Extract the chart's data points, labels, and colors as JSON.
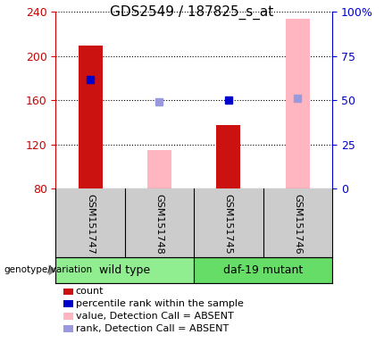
{
  "title": "GDS2549 / 187825_s_at",
  "samples": [
    "GSM151747",
    "GSM151748",
    "GSM151745",
    "GSM151746"
  ],
  "groups": [
    {
      "name": "wild type",
      "color": "#90EE90",
      "samples": [
        0,
        1
      ]
    },
    {
      "name": "daf-19 mutant",
      "color": "#66DD66",
      "samples": [
        2,
        3
      ]
    }
  ],
  "ymin": 80,
  "ymax": 240,
  "yticks_left": [
    80,
    120,
    160,
    200,
    240
  ],
  "yticks_right": [
    0,
    25,
    50,
    75,
    100
  ],
  "ylabel_left_color": "#CC0000",
  "ylabel_right_color": "#0000CC",
  "count_bars": {
    "values": [
      210,
      null,
      138,
      null
    ],
    "color": "#CC1111",
    "bar_width": 0.35
  },
  "absent_value_bars": {
    "values": [
      null,
      115,
      null,
      234
    ],
    "color": "#FFB6C1",
    "bar_width": 0.35
  },
  "percentile_rank_dots": {
    "values": [
      62,
      null,
      50,
      null
    ],
    "color": "#0000CC",
    "size": 6
  },
  "absent_rank_dots": {
    "values": [
      null,
      49,
      null,
      51
    ],
    "color": "#9999DD",
    "size": 6
  },
  "grid_linestyle": "dotted",
  "plot_bg_color": "white",
  "sample_area_color": "#CCCCCC",
  "legend_items": [
    {
      "label": "count",
      "color": "#CC1111"
    },
    {
      "label": "percentile rank within the sample",
      "color": "#0000CC"
    },
    {
      "label": "value, Detection Call = ABSENT",
      "color": "#FFB6C1"
    },
    {
      "label": "rank, Detection Call = ABSENT",
      "color": "#9999DD"
    }
  ],
  "genotype_label": "genotype/variation",
  "title_fontsize": 11,
  "tick_fontsize": 9,
  "sample_fontsize": 8,
  "group_fontsize": 9,
  "legend_fontsize": 8
}
